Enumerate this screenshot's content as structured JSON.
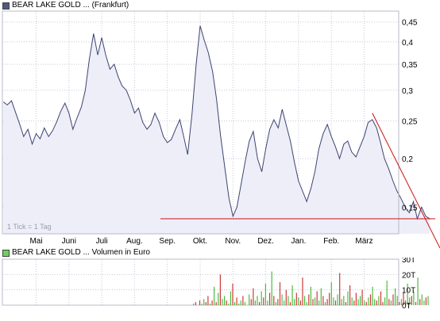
{
  "price_chart_title": "BEAR LAKE GOLD ... (Frankfurt)",
  "volume_chart_title": "BEAR LAKE GOLD ... Volumen in Euro",
  "tick_note": "1 Tick = 1 Tag",
  "colors": {
    "price_line": "#3c4470",
    "price_fill": "#eeeef8",
    "trend_line": "#cc1111",
    "volume_up": "#4cbb3e",
    "volume_down": "#cc3a3a",
    "grid": "#c8c8d8"
  },
  "chart_data": [
    {
      "type": "area",
      "title": "BEAR LAKE GOLD ... (Frankfurt)",
      "x_tick_labels": [
        "Mai",
        "Juni",
        "Juli",
        "Aug.",
        "Sep.",
        "Okt.",
        "Nov.",
        "Dez.",
        "Jan.",
        "Feb.",
        "März"
      ],
      "y_tick_labels": [
        "0,45",
        "0,4",
        "0,35",
        "0,3",
        "0,25",
        "0,2",
        "0,15"
      ],
      "y_tick_values": [
        0.45,
        0.4,
        0.35,
        0.3,
        0.25,
        0.2,
        0.15
      ],
      "y_scale": "log",
      "ylim": [
        0.128,
        0.48
      ],
      "grid": true,
      "annotations": [
        "1 Tick = 1 Tag"
      ],
      "x_month_index_range": [
        -1.0,
        10.0
      ],
      "points": [
        [
          -1.0,
          0.28
        ],
        [
          -0.88,
          0.275
        ],
        [
          -0.75,
          0.282
        ],
        [
          -0.62,
          0.262
        ],
        [
          -0.5,
          0.245
        ],
        [
          -0.38,
          0.228
        ],
        [
          -0.25,
          0.238
        ],
        [
          -0.12,
          0.218
        ],
        [
          0.0,
          0.232
        ],
        [
          0.12,
          0.225
        ],
        [
          0.25,
          0.24
        ],
        [
          0.38,
          0.228
        ],
        [
          0.5,
          0.236
        ],
        [
          0.62,
          0.248
        ],
        [
          0.75,
          0.265
        ],
        [
          0.88,
          0.278
        ],
        [
          1.0,
          0.262
        ],
        [
          1.12,
          0.238
        ],
        [
          1.25,
          0.255
        ],
        [
          1.38,
          0.272
        ],
        [
          1.5,
          0.3
        ],
        [
          1.62,
          0.36
        ],
        [
          1.75,
          0.42
        ],
        [
          1.88,
          0.37
        ],
        [
          2.0,
          0.41
        ],
        [
          2.12,
          0.37
        ],
        [
          2.25,
          0.34
        ],
        [
          2.38,
          0.35
        ],
        [
          2.5,
          0.325
        ],
        [
          2.62,
          0.308
        ],
        [
          2.75,
          0.3
        ],
        [
          2.88,
          0.282
        ],
        [
          3.0,
          0.262
        ],
        [
          3.12,
          0.27
        ],
        [
          3.25,
          0.248
        ],
        [
          3.38,
          0.238
        ],
        [
          3.5,
          0.245
        ],
        [
          3.62,
          0.262
        ],
        [
          3.75,
          0.248
        ],
        [
          3.88,
          0.228
        ],
        [
          4.0,
          0.22
        ],
        [
          4.12,
          0.224
        ],
        [
          4.25,
          0.238
        ],
        [
          4.38,
          0.252
        ],
        [
          4.5,
          0.228
        ],
        [
          4.62,
          0.205
        ],
        [
          4.75,
          0.26
        ],
        [
          4.88,
          0.35
        ],
        [
          5.0,
          0.44
        ],
        [
          5.12,
          0.405
        ],
        [
          5.25,
          0.375
        ],
        [
          5.38,
          0.335
        ],
        [
          5.5,
          0.285
        ],
        [
          5.62,
          0.23
        ],
        [
          5.75,
          0.19
        ],
        [
          5.88,
          0.158
        ],
        [
          6.0,
          0.142
        ],
        [
          6.12,
          0.15
        ],
        [
          6.25,
          0.172
        ],
        [
          6.38,
          0.198
        ],
        [
          6.5,
          0.222
        ],
        [
          6.62,
          0.235
        ],
        [
          6.75,
          0.2
        ],
        [
          6.88,
          0.185
        ],
        [
          7.0,
          0.212
        ],
        [
          7.12,
          0.238
        ],
        [
          7.25,
          0.252
        ],
        [
          7.38,
          0.24
        ],
        [
          7.5,
          0.268
        ],
        [
          7.62,
          0.245
        ],
        [
          7.75,
          0.222
        ],
        [
          7.88,
          0.195
        ],
        [
          8.0,
          0.175
        ],
        [
          8.12,
          0.165
        ],
        [
          8.25,
          0.155
        ],
        [
          8.38,
          0.168
        ],
        [
          8.5,
          0.185
        ],
        [
          8.62,
          0.212
        ],
        [
          8.75,
          0.232
        ],
        [
          8.88,
          0.245
        ],
        [
          9.0,
          0.228
        ],
        [
          9.12,
          0.215
        ],
        [
          9.25,
          0.2
        ],
        [
          9.38,
          0.218
        ],
        [
          9.5,
          0.222
        ],
        [
          9.62,
          0.208
        ],
        [
          9.75,
          0.202
        ],
        [
          9.88,
          0.215
        ],
        [
          10.0,
          0.228
        ],
        [
          10.12,
          0.248
        ],
        [
          10.25,
          0.252
        ],
        [
          10.38,
          0.24
        ],
        [
          10.5,
          0.22
        ],
        [
          10.62,
          0.2
        ],
        [
          10.75,
          0.188
        ],
        [
          10.88,
          0.175
        ],
        [
          11.0,
          0.165
        ],
        [
          11.12,
          0.158
        ],
        [
          11.25,
          0.15
        ],
        [
          11.38,
          0.145
        ],
        [
          11.5,
          0.155
        ],
        [
          11.62,
          0.14
        ],
        [
          11.75,
          0.15
        ],
        [
          11.88,
          0.142
        ],
        [
          12.0,
          0.14
        ]
      ],
      "support_line": {
        "value": 0.14
      },
      "trend_line": {
        "from": [
          10.25,
          0.262
        ],
        "to": [
          13.0,
          0.09
        ]
      }
    },
    {
      "type": "bar",
      "title": "BEAR LAKE GOLD ... Volumen in Euro",
      "y_tick_labels": [
        "30T",
        "20T",
        "10T",
        "0T"
      ],
      "y_tick_values": [
        30,
        20,
        10,
        0
      ],
      "ylim": [
        0,
        30
      ],
      "unit": "T",
      "bars_start_month_index": 4.8,
      "bars_end_month_index": 11.95,
      "values": [
        1,
        2,
        0,
        3,
        1,
        4,
        2,
        6,
        1,
        3,
        12,
        2,
        8,
        20,
        4,
        6,
        3,
        1,
        9,
        14,
        2,
        5,
        1,
        3,
        6,
        2,
        0,
        7,
        4,
        11,
        3,
        6,
        2,
        9,
        5,
        14,
        3,
        8,
        22,
        6,
        2,
        4,
        15,
        7,
        3,
        10,
        6,
        2,
        13,
        4,
        8,
        5,
        3,
        18,
        6,
        2,
        7,
        12,
        4,
        5,
        9,
        3,
        11,
        6,
        2,
        4,
        8,
        15,
        5,
        3,
        7,
        21,
        4,
        6,
        2,
        9,
        13,
        5,
        3,
        8,
        4,
        6,
        10,
        3,
        2,
        5,
        7,
        12,
        4,
        3,
        6,
        9,
        2,
        5,
        16,
        4,
        3,
        7,
        11,
        6,
        2,
        4,
        8,
        3,
        14,
        5,
        6,
        9,
        2,
        18,
        4,
        7,
        3,
        5,
        6
      ],
      "up_mask": [
        1,
        0,
        1,
        0,
        1,
        1,
        0,
        0,
        1,
        0,
        1,
        0,
        1,
        0,
        1,
        1,
        0,
        1,
        1,
        0,
        1,
        0,
        1,
        1,
        0,
        1,
        0,
        1,
        0,
        0,
        1,
        1,
        0,
        1,
        0,
        1,
        1,
        0,
        1,
        0,
        1,
        0,
        0,
        1,
        1,
        0,
        1,
        0,
        1,
        1,
        0,
        1,
        0,
        0,
        1,
        1,
        0,
        1,
        0,
        1,
        0,
        1,
        1,
        0,
        1,
        0,
        0,
        1,
        1,
        0,
        1,
        0,
        1,
        1,
        0,
        1,
        0,
        1,
        0,
        0,
        1,
        1,
        0,
        1,
        0,
        1,
        0,
        1,
        1,
        0,
        1,
        0,
        0,
        1,
        1,
        0,
        1,
        0,
        1,
        1,
        0,
        1,
        0,
        0,
        1,
        1,
        0,
        1,
        0,
        1,
        0,
        1,
        1,
        0,
        1
      ]
    }
  ]
}
